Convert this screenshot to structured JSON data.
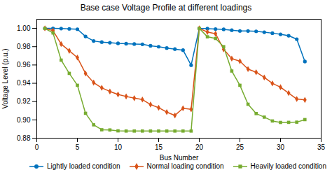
{
  "chart_data": {
    "type": "line",
    "title": "Base case Voltage Profile at different loadings",
    "xlabel": "Bus Number",
    "ylabel": "Voltage Level (p.u.)",
    "x": [
      1,
      2,
      3,
      4,
      5,
      6,
      7,
      8,
      9,
      10,
      11,
      12,
      13,
      14,
      15,
      16,
      17,
      18,
      19,
      20,
      21,
      22,
      23,
      24,
      25,
      26,
      27,
      28,
      29,
      30,
      31,
      32,
      33
    ],
    "series": [
      {
        "name": "Lightly loaded condition",
        "color": "#0072BD",
        "marker": "circle",
        "values": [
          1.0,
          1.0,
          0.9998,
          0.9995,
          0.9991,
          0.9912,
          0.9862,
          0.985,
          0.9843,
          0.9837,
          0.9833,
          0.9829,
          0.9826,
          0.981,
          0.98,
          0.9785,
          0.9774,
          0.9762,
          0.9598,
          1.0,
          0.9997,
          0.9993,
          0.999,
          0.998,
          0.9972,
          0.9971,
          0.9968,
          0.9958,
          0.9948,
          0.9935,
          0.992,
          0.9882,
          0.9638
        ]
      },
      {
        "name": "Normal loading condition",
        "color": "#D95319",
        "marker": "diamond",
        "values": [
          1.0,
          0.9975,
          0.9829,
          0.9755,
          0.9681,
          0.9508,
          0.9407,
          0.935,
          0.9311,
          0.9278,
          0.9256,
          0.9237,
          0.9222,
          0.9168,
          0.9133,
          0.9085,
          0.9049,
          0.9127,
          0.9116,
          1.0,
          0.996,
          0.9942,
          0.9771,
          0.967,
          0.9641,
          0.9555,
          0.9521,
          0.9464,
          0.9399,
          0.9357,
          0.9293,
          0.9228,
          0.9218
        ]
      },
      {
        "name": "Heavily loaded condition",
        "color": "#77AC30",
        "marker": "square",
        "values": [
          1.0,
          0.995,
          0.9653,
          0.9508,
          0.9378,
          0.9072,
          0.8946,
          0.8892,
          0.889,
          0.888,
          0.8878,
          0.8878,
          0.8878,
          0.8878,
          0.8878,
          0.8878,
          0.8878,
          0.8878,
          0.8878,
          1.0,
          0.9908,
          0.989,
          0.98,
          0.9534,
          0.9378,
          0.9171,
          0.9069,
          0.903,
          0.8988,
          0.8972,
          0.8973,
          0.8975,
          0.9003
        ]
      }
    ],
    "xlim": [
      0,
      35
    ],
    "ylim": [
      0.88,
      1.01
    ],
    "xticks": [
      0,
      5,
      10,
      15,
      20,
      25,
      30,
      35
    ],
    "yticks": [
      0.88,
      {
        "value": 0.9,
        "label": "0.90"
      },
      0.92,
      0.94,
      0.96,
      0.98,
      {
        "value": 1.0,
        "label": "1.00"
      }
    ],
    "grid": false,
    "legend": "lower right"
  }
}
